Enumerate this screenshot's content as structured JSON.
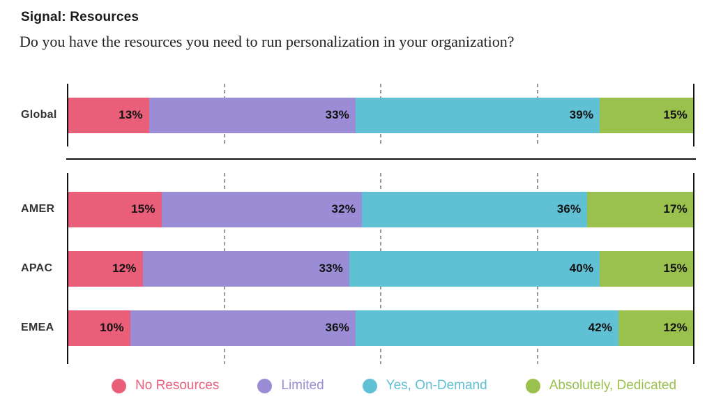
{
  "header": {
    "title": "Signal: Resources",
    "subtitle": "Do you have the resources you need to run personalization in your organization?"
  },
  "chart_data": {
    "type": "bar",
    "variant": "horizontal-stacked",
    "unit": "%",
    "xlim": [
      0,
      100
    ],
    "grid": "vertical-dashed",
    "gridlines": [
      25,
      50,
      75
    ],
    "legend_position": "bottom",
    "categories": [
      "Global",
      "AMER",
      "APAC",
      "EMEA"
    ],
    "panels": [
      {
        "name": "global-panel",
        "categories": [
          "Global"
        ]
      },
      {
        "name": "regions-panel",
        "categories": [
          "AMER",
          "APAC",
          "EMEA"
        ]
      }
    ],
    "series": [
      {
        "name": "No Resources",
        "color": "#E95F7A",
        "values": [
          13,
          15,
          12,
          10
        ]
      },
      {
        "name": "Limited",
        "color": "#9A8CD5",
        "values": [
          33,
          32,
          33,
          36
        ]
      },
      {
        "name": "Yes, On-Demand",
        "color": "#60C0D4",
        "values": [
          39,
          36,
          40,
          42
        ]
      },
      {
        "name": "Absolutely, Dedicated",
        "color": "#9AC04E",
        "values": [
          15,
          17,
          15,
          12
        ]
      }
    ]
  },
  "colors": {
    "axis": "#111111",
    "gridline": "#9a9a9a",
    "separator": "#111111",
    "bar_label": "#111111",
    "row_label": "#333333",
    "title": "#1a1a1a",
    "subtitle": "#222222",
    "background": "#ffffff"
  }
}
